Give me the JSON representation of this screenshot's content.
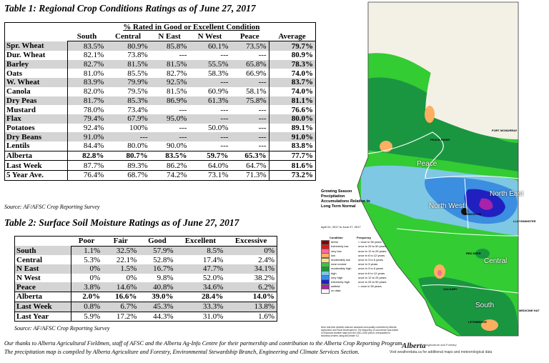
{
  "table1": {
    "title": "Table 1: Regional Crop Conditions Ratings as of June 27, 2017",
    "group_header": "% Rated in Good or Excellent Condition",
    "columns": [
      "South",
      "Central",
      "N East",
      "N West",
      "Peace",
      "Average"
    ],
    "rows": [
      {
        "label": "Spr. Wheat",
        "values": [
          "83.5%",
          "80.9%",
          "85.8%",
          "60.1%",
          "73.5%",
          "79.7%"
        ]
      },
      {
        "label": "Dur. Wheat",
        "values": [
          "82.1%",
          "73.8%",
          "---",
          "---",
          "---",
          "80.9%"
        ]
      },
      {
        "label": "Barley",
        "values": [
          "82.7%",
          "81.5%",
          "81.5%",
          "55.5%",
          "65.8%",
          "78.3%"
        ]
      },
      {
        "label": "Oats",
        "values": [
          "81.0%",
          "85.5%",
          "82.7%",
          "58.3%",
          "66.9%",
          "74.0%"
        ]
      },
      {
        "label": "W. Wheat",
        "values": [
          "83.9%",
          "79.9%",
          "92.5%",
          "---",
          "---",
          "83.7%"
        ]
      },
      {
        "label": "Canola",
        "values": [
          "82.0%",
          "79.5%",
          "81.5%",
          "60.9%",
          "58.1%",
          "74.0%"
        ]
      },
      {
        "label": "Dry Peas",
        "values": [
          "81.7%",
          "85.3%",
          "86.9%",
          "61.3%",
          "75.8%",
          "81.1%"
        ]
      },
      {
        "label": "Mustard",
        "values": [
          "78.0%",
          "73.4%",
          "---",
          "---",
          "---",
          "76.6%"
        ]
      },
      {
        "label": "Flax",
        "values": [
          "79.4%",
          "67.9%",
          "95.0%",
          "---",
          "---",
          "80.0%"
        ]
      },
      {
        "label": "Potatoes",
        "values": [
          "92.4%",
          "100%",
          "---",
          "50.0%",
          "---",
          "89.1%"
        ]
      },
      {
        "label": "Dry Beans",
        "values": [
          "91.0%",
          "---",
          "---",
          "---",
          "---",
          "91.0%"
        ]
      },
      {
        "label": "Lentils",
        "values": [
          "84.4%",
          "80.0%",
          "90.0%",
          "---",
          "---",
          "83.8%"
        ]
      },
      {
        "label": "Alberta",
        "values": [
          "82.8%",
          "80.7%",
          "83.5%",
          "59.7%",
          "65.3%",
          "77.7%"
        ]
      },
      {
        "label": "Last Week",
        "values": [
          "87.7%",
          "89.3%",
          "86.2%",
          "64.0%",
          "64.7%",
          "81.6%"
        ]
      },
      {
        "label": "5 Year Ave.",
        "values": [
          "76.4%",
          "68.7%",
          "74.2%",
          "73.1%",
          "71.3%",
          "73.2%"
        ]
      }
    ],
    "source": "Source: AF/AFSC Crop Reporting Survey"
  },
  "table2": {
    "title": "Table 2: Surface Soil Moisture Ratings as of June 27, 2017",
    "columns": [
      "Poor",
      "Fair",
      "Good",
      "Excellent",
      "Excessive"
    ],
    "rows": [
      {
        "label": "South",
        "values": [
          "1.1%",
          "32.5%",
          "57.9%",
          "8.5%",
          "0%"
        ]
      },
      {
        "label": "Central",
        "values": [
          "5.3%",
          "22.1%",
          "52.8%",
          "17.4%",
          "2.4%"
        ]
      },
      {
        "label": "N East",
        "values": [
          "0%",
          "1.5%",
          "16.7%",
          "47.7%",
          "34.1%"
        ]
      },
      {
        "label": "N West",
        "values": [
          "0%",
          "0%",
          "9.8%",
          "52.0%",
          "38.2%"
        ]
      },
      {
        "label": "Peace",
        "values": [
          "3.8%",
          "14.6%",
          "40.8%",
          "34.6%",
          "6.2%"
        ]
      },
      {
        "label": "Alberta",
        "values": [
          "2.0%",
          "16.6%",
          "39.0%",
          "28.4%",
          "14.0%"
        ]
      },
      {
        "label": "Last Week",
        "values": [
          "0.8%",
          "6.7%",
          "45.3%",
          "33.3%",
          "13.8%"
        ]
      },
      {
        "label": "Last Year",
        "values": [
          "5.9%",
          "17.2%",
          "44.3%",
          "31.0%",
          "1.6%"
        ]
      }
    ],
    "source": "Source: AF/AFSC Crop Reporting Survey"
  },
  "thanks": {
    "line1": "Our thanks to Alberta Agricultural Fieldmen, staff of AFSC and the Alberta Ag-Info Centre for their partnership and contribution to the Alberta Crop Reporting Program.",
    "line2": "The precipitation map is compiled by Alberta Agriculture and Forestry, Environmental Stewardship Branch, Engineering and Climate Services Section."
  },
  "map": {
    "legend_title": "Growing Season Precipitation Accumulations Relative to Long Term Normal",
    "dates": "April 01, 2017 to June 27, 2017",
    "condition_header": "Condition",
    "frequency_header": "Frequency",
    "legend": [
      {
        "name": "driest",
        "freq": "< once in 50 years",
        "color": "#8b0000"
      },
      {
        "name": "extremely low",
        "freq": "once in 25 to 50 years",
        "color": "#d7191c"
      },
      {
        "name": "very low",
        "freq": "once in 12 to 25 years",
        "color": "#f46d9a"
      },
      {
        "name": "low",
        "freq": "once in 6 to 12 years",
        "color": "#fdae61"
      },
      {
        "name": "moderately low",
        "freq": "once in 3 to 6 years",
        "color": "#f4e38c"
      },
      {
        "name": "near normal",
        "freq": "once in 3 years",
        "color": "#33cc33"
      },
      {
        "name": "moderately high",
        "freq": "once in 3 to 6 years",
        "color": "#1a9641"
      },
      {
        "name": "high",
        "freq": "once in 6 to 12 years",
        "color": "#7ec8e3"
      },
      {
        "name": "very high",
        "freq": "once in 12 to 25 years",
        "color": "#3b8ee0"
      },
      {
        "name": "extremely high",
        "freq": "once in 25 to 50 years",
        "color": "#2020c0"
      },
      {
        "name": "wettest",
        "freq": "> once in 50 years",
        "color": "#aa22aa"
      },
      {
        "name": "no data",
        "freq": "",
        "color": "#ffffff"
      }
    ],
    "regions": [
      "Peace",
      "North West",
      "North East",
      "Central",
      "South"
    ],
    "cities": [
      "PEACE RIVER",
      "FORT MCMURRAY",
      "EDMONTON",
      "LLOYDMINSTER",
      "RED DEER",
      "CALGARY",
      "LETHBRIDGE",
      "MEDICINE HAT"
    ],
    "note": "Near real-time weather data are assessed and quality controlled by Alberta Agriculture and Rural Development. The frequency of occurrence was based on historical weather data from the 1961-2016 period. Interpolated to township centres using AbClimate 3.2.",
    "footer": "Visit weatherdata.ca for additional maps and meteorological data",
    "logo": "Alberta",
    "logo_sub": "Agriculture and Forestry"
  }
}
